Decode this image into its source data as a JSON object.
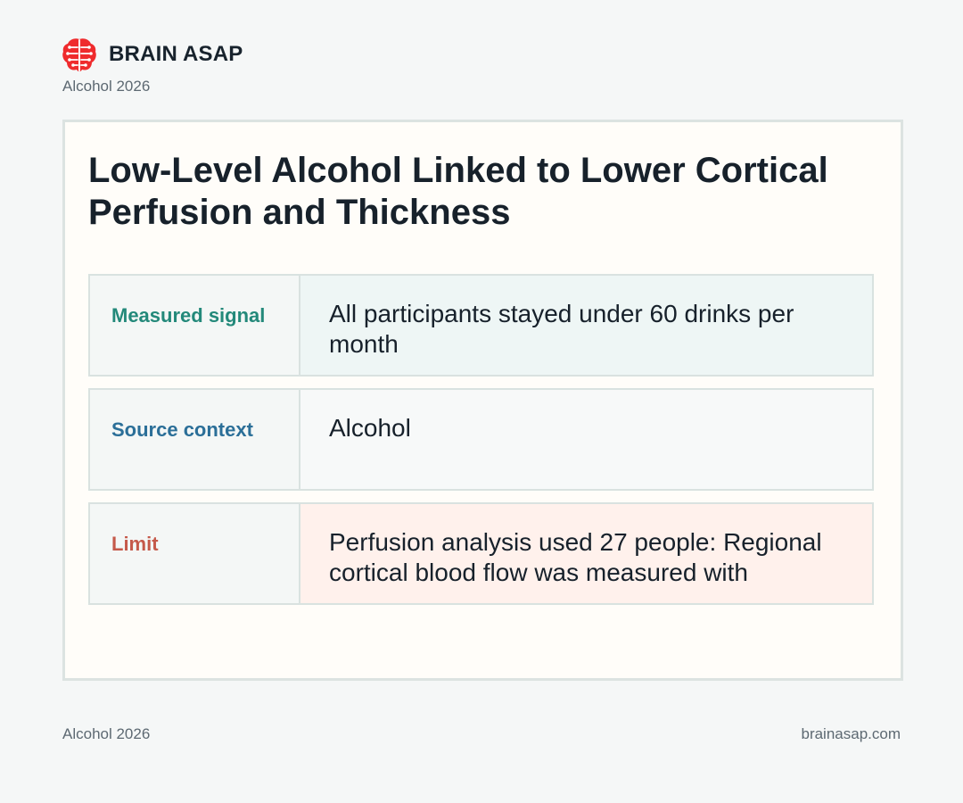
{
  "brand": {
    "name": "BRAIN ASAP",
    "subtitle": "Alcohol 2026",
    "logo_icon": "brain-icon",
    "logo_color": "#ef2b2d"
  },
  "card": {
    "title": "Low-Level Alcohol Linked to Lower Cortical Perfusion and Thickness",
    "rows": [
      {
        "label": "Measured signal",
        "value": "All participants stayed under 60 drinks per month",
        "label_color": "#23897a",
        "background": "#eef6f5"
      },
      {
        "label": "Source context",
        "value": "Alcohol",
        "label_color": "#2b6f98",
        "background": "#f7f9f9"
      },
      {
        "label": "Limit",
        "value": "Perfusion analysis used 27 people: Regional cortical blood flow was measured with",
        "label_color": "#c5594a",
        "background": "#fff1ec"
      }
    ]
  },
  "footer": {
    "left": "Alcohol 2026",
    "right": "brainasap.com"
  }
}
